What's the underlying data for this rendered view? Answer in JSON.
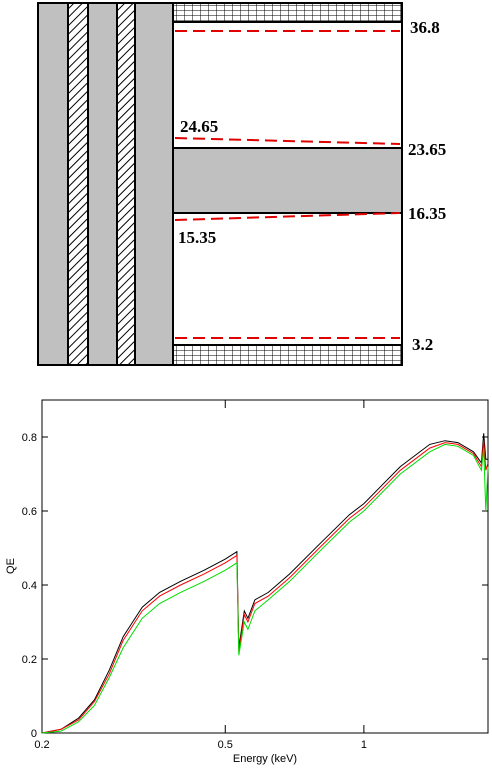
{
  "diagram": {
    "labels": [
      36.8,
      24.65,
      23.65,
      16.35,
      15.35,
      3.2
    ]
  },
  "chart_data": {
    "type": "line",
    "xlabel": "Energy (keV)",
    "ylabel": "QE",
    "xscale": "log",
    "xlim": [
      0.2,
      1.86
    ],
    "ylim": [
      0,
      0.9
    ],
    "xticks": [
      0.2,
      0.5,
      1
    ],
    "yticks": [
      0,
      0.2,
      0.4,
      0.6,
      0.8
    ],
    "x": [
      0.2,
      0.22,
      0.24,
      0.26,
      0.28,
      0.3,
      0.33,
      0.36,
      0.4,
      0.45,
      0.5,
      0.53,
      0.535,
      0.55,
      0.56,
      0.58,
      0.62,
      0.69,
      0.8,
      0.93,
      1.0,
      1.2,
      1.39,
      1.5,
      1.6,
      1.73,
      1.8,
      1.82,
      1.84,
      1.86
    ],
    "series": [
      {
        "color": "#000000",
        "values": [
          0,
          0.01,
          0.04,
          0.09,
          0.17,
          0.26,
          0.34,
          0.38,
          0.41,
          0.44,
          0.47,
          0.49,
          0.23,
          0.33,
          0.31,
          0.36,
          0.38,
          0.43,
          0.51,
          0.59,
          0.62,
          0.72,
          0.78,
          0.79,
          0.785,
          0.76,
          0.73,
          0.81,
          0.74,
          0.74
        ]
      },
      {
        "color": "#ff0000",
        "values": [
          0,
          0.01,
          0.035,
          0.085,
          0.16,
          0.25,
          0.33,
          0.37,
          0.4,
          0.43,
          0.46,
          0.48,
          0.22,
          0.32,
          0.3,
          0.35,
          0.37,
          0.42,
          0.5,
          0.58,
          0.61,
          0.71,
          0.77,
          0.785,
          0.78,
          0.755,
          0.72,
          0.79,
          0.71,
          0.73
        ]
      },
      {
        "color": "#00dd00",
        "values": [
          0,
          0.005,
          0.03,
          0.075,
          0.15,
          0.23,
          0.31,
          0.35,
          0.38,
          0.41,
          0.44,
          0.46,
          0.21,
          0.3,
          0.28,
          0.33,
          0.36,
          0.41,
          0.49,
          0.57,
          0.6,
          0.7,
          0.76,
          0.78,
          0.775,
          0.75,
          0.71,
          0.77,
          0.6,
          0.72
        ]
      }
    ]
  }
}
